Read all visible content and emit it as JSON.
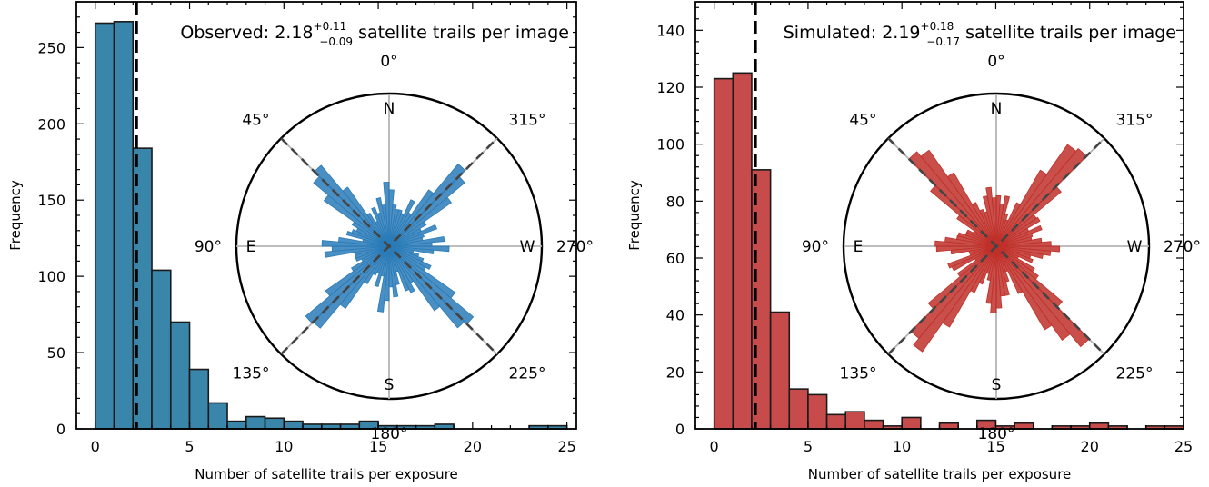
{
  "chart_data": [
    {
      "type": "bar",
      "title": "",
      "annotation": {
        "prefix": "Observed: 2.18",
        "sup": "+0.11",
        "sub": "−0.09",
        "suffix": "satellite trails per image"
      },
      "xlabel": "Number of satellite trails per exposure",
      "ylabel": "Frequency",
      "xlim": [
        -1,
        25.5
      ],
      "ylim": [
        0,
        280
      ],
      "xticks": [
        0,
        5,
        10,
        15,
        20,
        25
      ],
      "yticks": [
        0,
        50,
        100,
        150,
        200,
        250
      ],
      "bar_color": "#3a86aa",
      "bin_start": 0,
      "bin_width": 1,
      "counts": [
        266,
        267,
        184,
        104,
        70,
        39,
        17,
        5,
        8,
        7,
        5,
        3,
        3,
        3,
        5,
        2,
        2,
        2,
        3,
        0,
        0,
        0,
        0,
        2,
        2
      ],
      "median_line": 2.18,
      "inset": {
        "type": "polar-rose",
        "color": "#2a7bb8",
        "peak_deg": [
          45,
          135,
          225,
          315
        ],
        "dashed_deg": [
          45,
          135,
          225,
          315
        ],
        "max_petal": 0.75,
        "angle_labels": [
          {
            "text": "0°",
            "deg": 0
          },
          {
            "text": "45°",
            "deg": 45
          },
          {
            "text": "90°",
            "deg": 90
          },
          {
            "text": "135°",
            "deg": 135
          },
          {
            "text": "180°",
            "deg": 180
          },
          {
            "text": "225°",
            "deg": 225
          },
          {
            "text": "270°",
            "deg": 270
          },
          {
            "text": "315°",
            "deg": 315
          }
        ],
        "compass_labels": [
          {
            "text": "N",
            "deg": 0
          },
          {
            "text": "E",
            "deg": 90
          },
          {
            "text": "S",
            "deg": 180
          },
          {
            "text": "W",
            "deg": 270
          }
        ]
      }
    },
    {
      "type": "bar",
      "title": "",
      "annotation": {
        "prefix": "Simulated: 2.19",
        "sup": "+0.18",
        "sub": "−0.17",
        "suffix": "satellite trails per image"
      },
      "xlabel": "Number of satellite trails per exposure",
      "ylabel": "Frequency",
      "xlim": [
        -1,
        25
      ],
      "ylim": [
        0,
        150
      ],
      "xticks": [
        0,
        5,
        10,
        15,
        20,
        25
      ],
      "yticks": [
        0,
        20,
        40,
        60,
        80,
        100,
        120,
        140
      ],
      "bar_color": "#c84b4b",
      "bin_start": 0,
      "bin_width": 1,
      "counts": [
        123,
        125,
        91,
        41,
        14,
        12,
        5,
        6,
        3,
        1,
        4,
        0,
        2,
        0,
        3,
        1,
        2,
        0,
        1,
        1,
        2,
        1,
        0,
        1,
        1
      ],
      "median_line": 2.19,
      "inset": {
        "type": "polar-rose",
        "color": "#c0302a",
        "peak_deg": [
          40,
          140,
          220,
          320
        ],
        "dashed_deg": [
          45,
          135,
          225,
          315
        ],
        "max_petal": 0.9,
        "angle_labels": [
          {
            "text": "0°",
            "deg": 0
          },
          {
            "text": "45°",
            "deg": 45
          },
          {
            "text": "90°",
            "deg": 90
          },
          {
            "text": "135°",
            "deg": 135
          },
          {
            "text": "180°",
            "deg": 180
          },
          {
            "text": "225°",
            "deg": 225
          },
          {
            "text": "270°",
            "deg": 270
          },
          {
            "text": "315°",
            "deg": 315
          }
        ],
        "compass_labels": [
          {
            "text": "N",
            "deg": 0
          },
          {
            "text": "E",
            "deg": 90
          },
          {
            "text": "S",
            "deg": 180
          },
          {
            "text": "W",
            "deg": 270
          }
        ]
      }
    }
  ]
}
